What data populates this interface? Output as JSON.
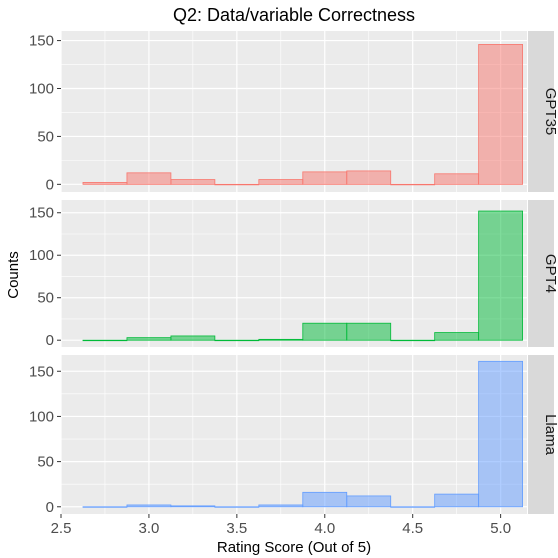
{
  "chart_data": {
    "type": "bar",
    "title": "Q2: Data/variable Correctness",
    "xlabel": "Rating Score (Out of 5)",
    "ylabel": "Counts",
    "xlim": [
      2.5,
      5.15
    ],
    "x_ticks": [
      "2.5",
      "3.0",
      "3.5",
      "4.0",
      "4.5",
      "5.0"
    ],
    "x_tick_values": [
      2.5,
      3.0,
      3.5,
      4.0,
      4.5,
      5.0
    ],
    "y_ticks": [
      "0",
      "50",
      "100",
      "150"
    ],
    "y_tick_values": [
      0,
      50,
      100,
      150
    ],
    "grid": true,
    "bin_edges": [
      2.625,
      2.875,
      3.125,
      3.375,
      3.625,
      3.875,
      4.125,
      4.375,
      4.625,
      4.875,
      5.125
    ],
    "panels": [
      {
        "name": "GPT35",
        "color": "#f8766d",
        "ylim": [
          -8,
          160
        ],
        "values": [
          2,
          12,
          5,
          0,
          5,
          13,
          14,
          0,
          11,
          146
        ]
      },
      {
        "name": "GPT4",
        "color": "#00ba38",
        "ylim": [
          -8,
          165
        ],
        "values": [
          0,
          3,
          5,
          0,
          1,
          20,
          20,
          0,
          9,
          152
        ]
      },
      {
        "name": "Llama",
        "color": "#619cff",
        "ylim": [
          -8,
          168
        ],
        "values": [
          0,
          2,
          1,
          0,
          2,
          16,
          12,
          0,
          14,
          161
        ]
      }
    ]
  }
}
